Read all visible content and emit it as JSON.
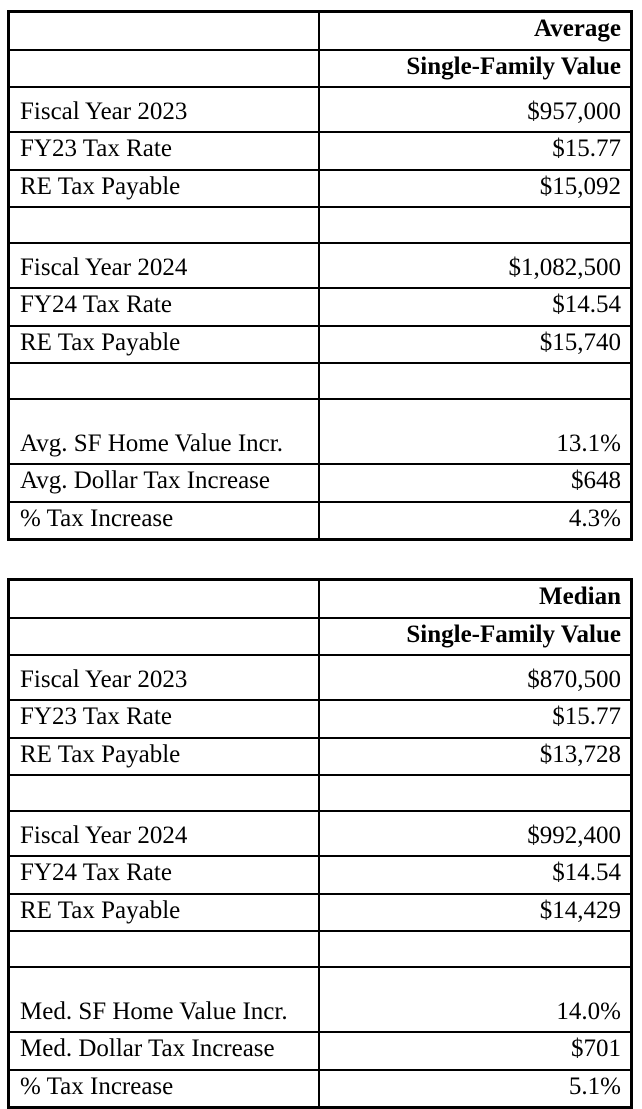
{
  "page": {
    "background": "#ffffff",
    "text_color": "#000000",
    "border_color": "#000000"
  },
  "tables": [
    {
      "name": "average-single-family",
      "rows": [
        {
          "label": "",
          "value": "Average"
        },
        {
          "label": "",
          "value": "Single-Family Value"
        },
        {
          "label": "Fiscal Year 2023",
          "value": "$957,000"
        },
        {
          "label": "FY23 Tax Rate",
          "value": "$15.77"
        },
        {
          "label": "RE Tax Payable",
          "value": "$15,092"
        },
        {
          "label": "",
          "value": ""
        },
        {
          "label": "Fiscal Year 2024",
          "value": "$1,082,500"
        },
        {
          "label": "FY24 Tax Rate",
          "value": "$14.54"
        },
        {
          "label": "RE Tax Payable",
          "value": "$15,740"
        },
        {
          "label": "",
          "value": ""
        },
        {
          "label": "Avg. SF Home Value Incr.",
          "value": "13.1%"
        },
        {
          "label": "Avg. Dollar Tax Increase",
          "value": "$648"
        },
        {
          "label": "% Tax Increase",
          "value": "4.3%"
        }
      ]
    },
    {
      "name": "median-single-family",
      "rows": [
        {
          "label": "",
          "value": "Median"
        },
        {
          "label": "",
          "value": "Single-Family Value"
        },
        {
          "label": "Fiscal Year 2023",
          "value": "$870,500"
        },
        {
          "label": "FY23 Tax Rate",
          "value": "$15.77"
        },
        {
          "label": "RE Tax Payable",
          "value": "$13,728"
        },
        {
          "label": "",
          "value": ""
        },
        {
          "label": "Fiscal Year 2024",
          "value": "$992,400"
        },
        {
          "label": "FY24 Tax Rate",
          "value": "$14.54"
        },
        {
          "label": "RE Tax Payable",
          "value": "$14,429"
        },
        {
          "label": "",
          "value": ""
        },
        {
          "label": "Med. SF Home Value Incr.",
          "value": "14.0%"
        },
        {
          "label": "Med. Dollar Tax Increase",
          "value": "$701"
        },
        {
          "label": "% Tax Increase",
          "value": "5.1%"
        }
      ]
    }
  ]
}
